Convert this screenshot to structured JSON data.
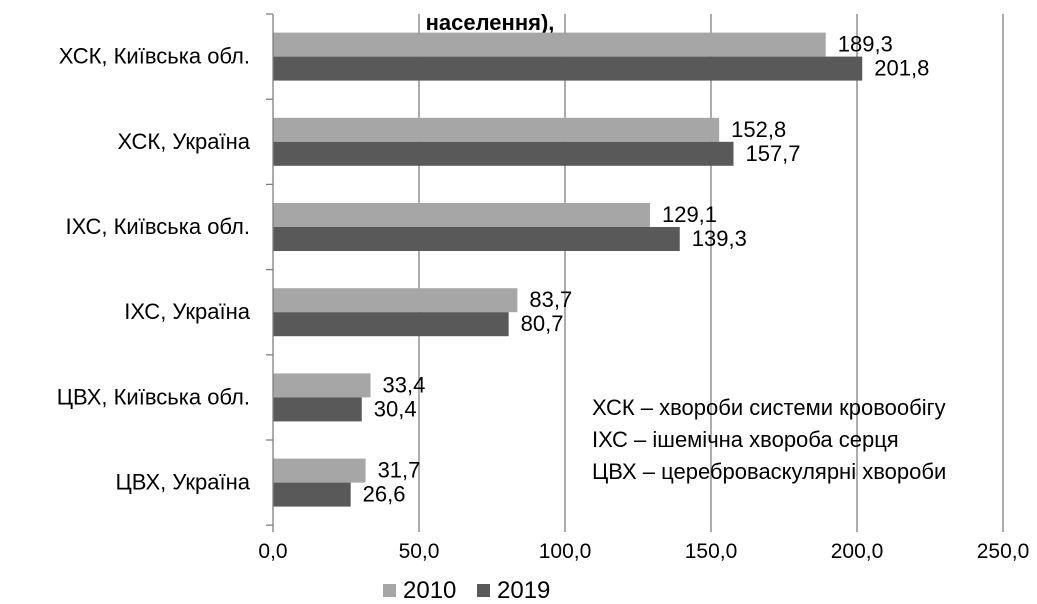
{
  "chart_data": {
    "type": "bar",
    "orientation": "horizontal",
    "title": "населення),",
    "categories": [
      "ХСК, Київська обл.",
      "ХСК, Україна",
      "ІХС, Київська обл.",
      "ІХС, Україна",
      "ЦВХ, Київська обл.",
      "ЦВХ, Україна"
    ],
    "series": [
      {
        "name": "2010",
        "color": "#a6a6a6",
        "values": [
          189.3,
          152.8,
          129.1,
          83.7,
          33.4,
          31.7
        ],
        "labels": [
          "189,3",
          "152,8",
          "129,1",
          "83,7",
          "33,4",
          "31,7"
        ]
      },
      {
        "name": "2019",
        "color": "#595959",
        "values": [
          201.8,
          157.7,
          139.3,
          80.7,
          30.4,
          26.6
        ],
        "labels": [
          "201,8",
          "157,7",
          "139,3",
          "80,7",
          "30,4",
          "26,6"
        ]
      }
    ],
    "x_ticks": [
      0,
      50,
      100,
      150,
      200,
      250
    ],
    "x_tick_labels": [
      "0,0",
      "50,0",
      "100,0",
      "150,0",
      "200,0",
      "250,0"
    ],
    "xlim": [
      0,
      250
    ],
    "grid": "vertical",
    "legend_position": "bottom",
    "notes": [
      "ХСК – хвороби системи кровообігу",
      "ІХС – ішемічна хвороба серця",
      "ЦВХ – цереброваскулярні хвороби"
    ]
  }
}
